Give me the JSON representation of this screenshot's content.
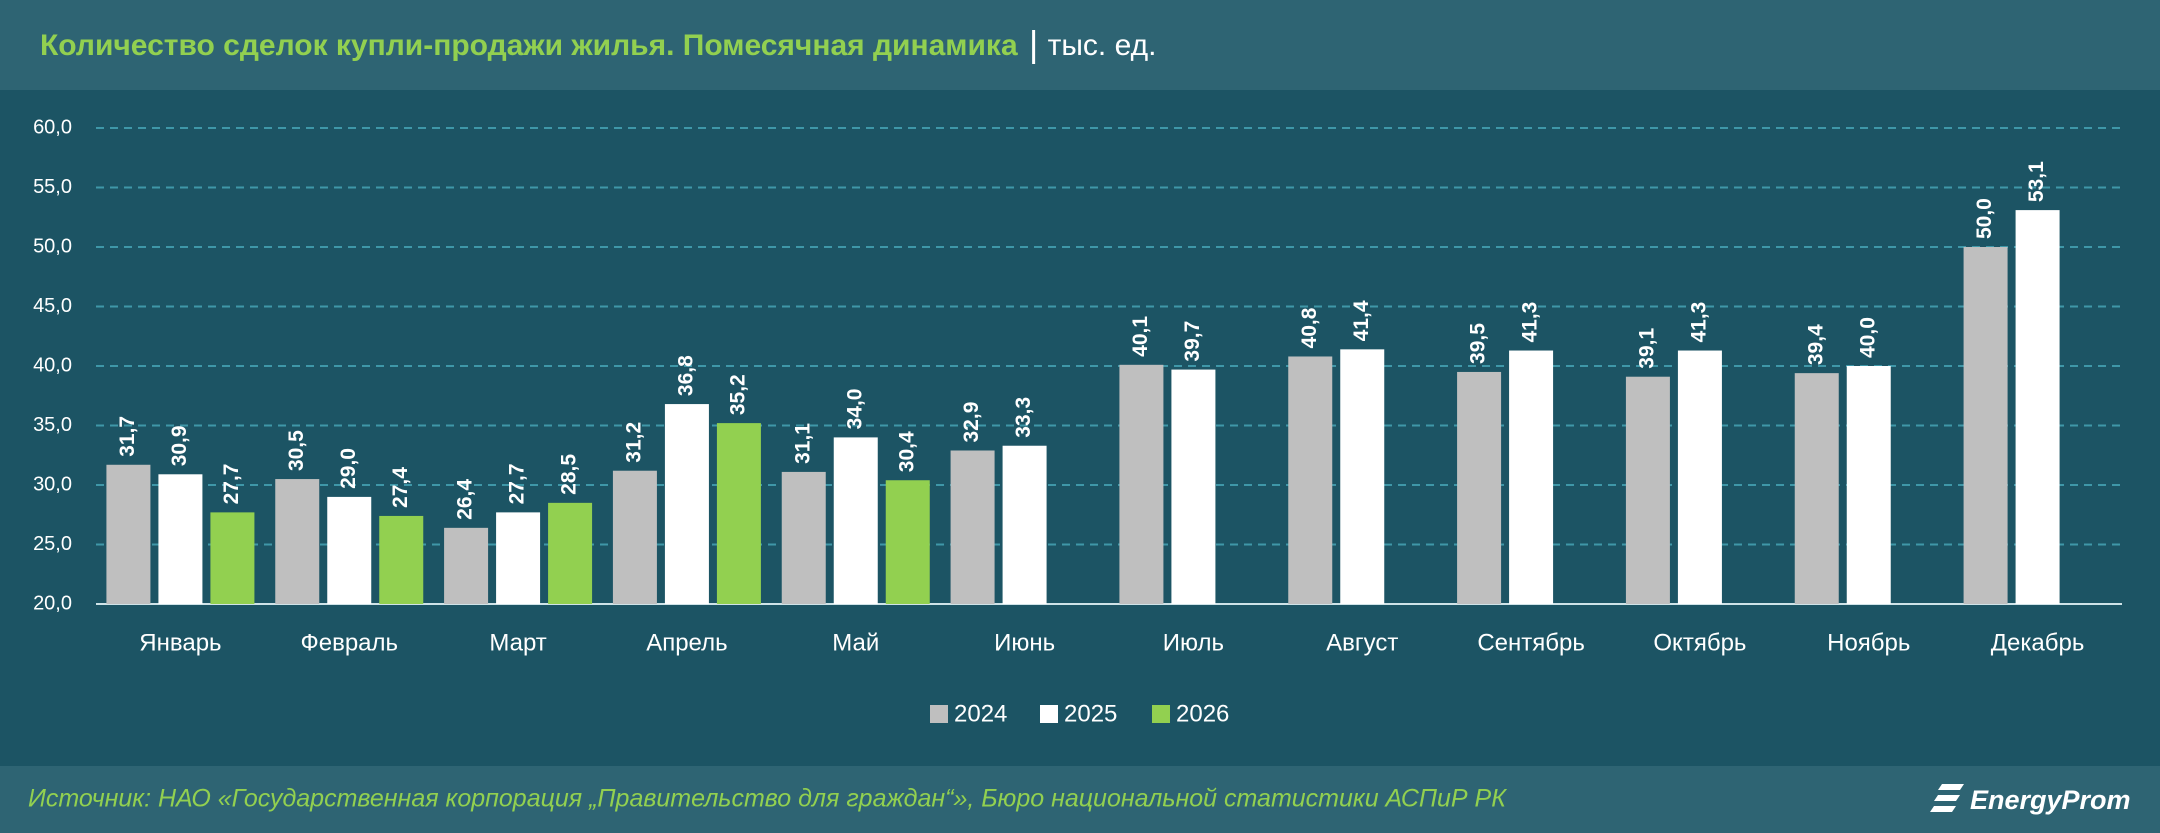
{
  "chart_data": {
    "type": "bar",
    "title": "Количество сделок купли-продажи жилья. Помесячная динамика",
    "unit": "тыс. ед.",
    "categories": [
      "Январь",
      "Февраль",
      "Март",
      "Апрель",
      "Май",
      "Июнь",
      "Июль",
      "Август",
      "Сентябрь",
      "Октябрь",
      "Ноябрь",
      "Декабрь"
    ],
    "series": [
      {
        "name": "2024",
        "color": "#bfbfbf",
        "values": [
          31.7,
          30.5,
          26.4,
          31.2,
          31.1,
          32.9,
          40.1,
          40.8,
          39.5,
          39.1,
          39.4,
          50.0
        ],
        "value_labels": [
          "31,7",
          "30,5",
          "26,4",
          "31,2",
          "31,1",
          "32,9",
          "40,1",
          "40,8",
          "39,5",
          "39,1",
          "39,4",
          "50,0"
        ]
      },
      {
        "name": "2025",
        "color": "#ffffff",
        "values": [
          30.9,
          29.0,
          27.7,
          36.8,
          34.0,
          33.3,
          39.7,
          41.4,
          41.3,
          41.3,
          40.0,
          53.1
        ],
        "value_labels": [
          "30,9",
          "29,0",
          "27,7",
          "36,8",
          "34,0",
          "33,3",
          "39,7",
          "41,4",
          "41,3",
          "41,3",
          "40,0",
          "53,1"
        ]
      },
      {
        "name": "2026",
        "color": "#92d050",
        "values": [
          27.7,
          27.4,
          28.5,
          35.2,
          30.4,
          null,
          null,
          null,
          null,
          null,
          null,
          null
        ],
        "value_labels": [
          "27,7",
          "27,4",
          "28,5",
          "35,2",
          "30,4",
          null,
          null,
          null,
          null,
          null,
          null,
          null
        ]
      }
    ],
    "ylim": [
      20,
      60
    ],
    "yticks": [
      {
        "value": 20,
        "label": "20,0"
      },
      {
        "value": 25,
        "label": "25,0"
      },
      {
        "value": 30,
        "label": "30,0"
      },
      {
        "value": 35,
        "label": "35,0"
      },
      {
        "value": 40,
        "label": "40,0"
      },
      {
        "value": 45,
        "label": "45,0"
      },
      {
        "value": 50,
        "label": "50,0"
      },
      {
        "value": 55,
        "label": "55,0"
      },
      {
        "value": 60,
        "label": "60,0"
      }
    ],
    "grid": true,
    "legend": "bottom",
    "source": "Источник: НАО «Государственная корпорация „Правительство для граждан“», Бюро национальной статистики АСПиР РК",
    "logo": "EnergyProm"
  }
}
